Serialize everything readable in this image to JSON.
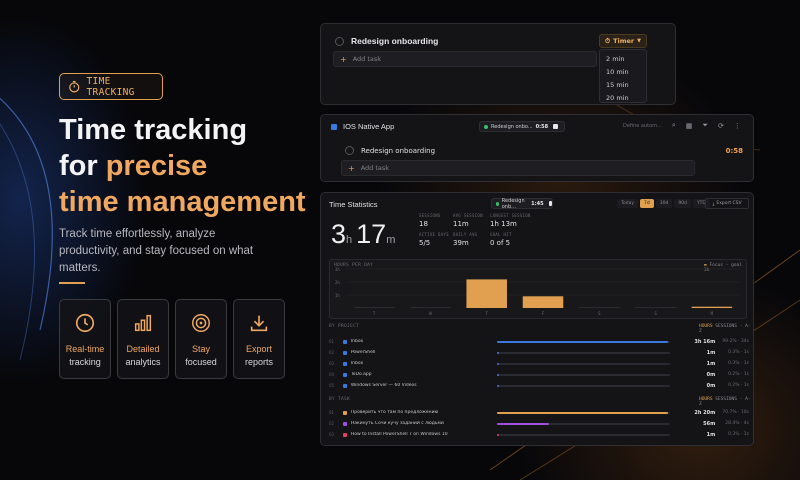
{
  "badge": {
    "label": "TIME TRACKING",
    "icon": "stopwatch-icon"
  },
  "hero": {
    "title_line1": "Time tracking",
    "title_line2_prefix": "for ",
    "title_line2_accent": "precise",
    "title_line3": "time management",
    "description": "Track time effortlessly, analyze productivity, and stay focused on what matters."
  },
  "features": [
    {
      "icon": "clock-icon",
      "highlight": "Real-time",
      "rest": "tracking"
    },
    {
      "icon": "bar-chart-icon",
      "highlight": "Detailed",
      "rest": "analytics"
    },
    {
      "icon": "target-icon",
      "highlight": "Stay",
      "rest": "focused"
    },
    {
      "icon": "download-icon",
      "highlight": "Export",
      "rest": "reports"
    }
  ],
  "panel1": {
    "task": "Redesign onboarding",
    "add_task": "Add task",
    "timer_label": "Timer",
    "timer_options": [
      "2 min",
      "10 min",
      "15 min",
      "20 min"
    ]
  },
  "panel2": {
    "project": "IOS Native App",
    "chip_task": "Redesign onbo...",
    "chip_time": "0:58",
    "tool_text": "Define autom...",
    "task": "Redesign onboarding",
    "task_time": "0:58",
    "add_task": "Add task"
  },
  "stats": {
    "title": "Time Statistics",
    "chip_task": "Redesign onb...",
    "chip_time": "1:45",
    "ranges": [
      "Today",
      "7d",
      "30d",
      "90d",
      "YTD"
    ],
    "active_range": "7d",
    "export_label": "Export CSV",
    "total_hours": "3",
    "total_minutes": "17",
    "hour_unit": "h",
    "minute_unit": "m",
    "metrics": [
      {
        "label": "SESSIONS",
        "value": "18"
      },
      {
        "label": "AVG SESSION",
        "value": "11m"
      },
      {
        "label": "LONGEST SESSION",
        "value": "1h 13m"
      },
      {
        "label": "ACTIVE DAYS",
        "value": "5/5"
      },
      {
        "label": "DAILY AVG",
        "value": "39m"
      },
      {
        "label": "GOAL HIT",
        "value": "0 of 5"
      }
    ],
    "chart_label": "HOURS PER DAY",
    "chart_legend": "Focus - goal 3h",
    "by_project_label": "BY PROJECT",
    "by_task_label": "BY TASK",
    "sort_hours": "HOURS",
    "sort_rest": "SESSIONS · A-Z",
    "projects": [
      {
        "idx": "01",
        "name": "Inbox",
        "color": "#3a7ae0",
        "fraction": 0.99,
        "duration": "3h 16m",
        "share": "99.2% · 34s"
      },
      {
        "idx": "02",
        "name": "PowerShell",
        "color": "#3a7ae0",
        "fraction": 0.01,
        "duration": "1m",
        "share": "0.3% · 1s"
      },
      {
        "idx": "03",
        "name": "Inbox",
        "color": "#3a7ae0",
        "fraction": 0.01,
        "duration": "1m",
        "share": "0.3% · 1s"
      },
      {
        "idx": "04",
        "name": "ToDo.app",
        "color": "#3a7ae0",
        "fraction": 0.005,
        "duration": "0m",
        "share": "0.2% · 1s"
      },
      {
        "idx": "05",
        "name": "Windows Server — 60 Videos",
        "color": "#3a7ae0",
        "fraction": 0.005,
        "duration": "0m",
        "share": "0.2% · 1s"
      }
    ],
    "tasks": [
      {
        "idx": "01",
        "name": "Проверить что там по предложению",
        "color": "#e0a050",
        "fraction": 0.99,
        "duration": "2h 20m",
        "share": "70.7% · 10s"
      },
      {
        "idx": "02",
        "name": "Накинуть Сочи кучу заданий с людьми",
        "color": "#a050e0",
        "fraction": 0.3,
        "duration": "56m",
        "share": "28.4% · 4s"
      },
      {
        "idx": "03",
        "name": "How to Install PowerShell 7 on Windows 10",
        "color": "#e04060",
        "fraction": 0.01,
        "duration": "1m",
        "share": "0.3% · 1s"
      }
    ]
  },
  "chart_data": {
    "type": "bar",
    "categories": [
      "T",
      "W",
      "T",
      "F",
      "S",
      "S",
      "M"
    ],
    "values": [
      0,
      0,
      2.2,
      0.9,
      0,
      0,
      0.1
    ],
    "ylabel": "",
    "ylim": [
      0,
      3
    ],
    "yticks": [
      "3h",
      "2h",
      "1h"
    ],
    "bar_color": "#e0a050",
    "grid": true,
    "legend": "top-right"
  }
}
